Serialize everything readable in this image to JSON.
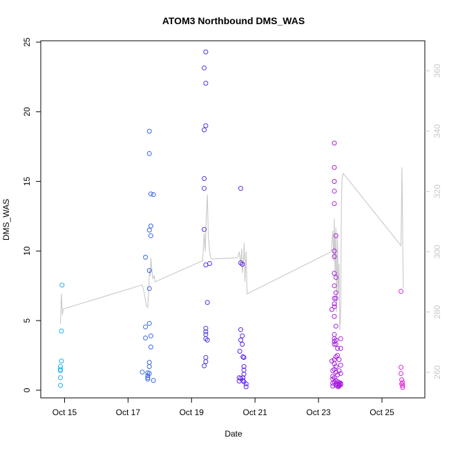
{
  "chart_data": {
    "type": "scatter",
    "title": "ATOM3 Northbound DMS_WAS",
    "xlabel": "Date",
    "ylabel": "DMS_WAS",
    "x_unit": "date (October, day of month)",
    "xlim": [
      14.25,
      26.35
    ],
    "ylim": [
      -0.55,
      25.1
    ],
    "y2lim": [
      251.5,
      370
    ],
    "x_ticks": [
      {
        "value": 15,
        "label": "Oct 15"
      },
      {
        "value": 17,
        "label": "Oct 17"
      },
      {
        "value": 19,
        "label": "Oct 19"
      },
      {
        "value": 21,
        "label": "Oct 21"
      },
      {
        "value": 23,
        "label": "Oct 23"
      },
      {
        "value": 25,
        "label": "Oct 25"
      }
    ],
    "y_ticks": [
      0,
      5,
      10,
      15,
      20,
      25
    ],
    "y2_ticks": [
      260,
      280,
      300,
      320,
      340,
      360
    ],
    "grid": false,
    "legend": "none",
    "colors": {
      "points_start": "#1ab0ea",
      "points_mid": "#5020e8",
      "points_end": "#e020d8",
      "line": "#c8c8c8",
      "right_axis": "#c8c8c8",
      "frame": "#000000"
    },
    "series": [
      {
        "type": "scatter",
        "points": [
          [
            14.87,
            1.7
          ],
          [
            14.87,
            1.5
          ],
          [
            14.87,
            1.4
          ],
          [
            14.87,
            0.9
          ],
          [
            14.87,
            0.35
          ],
          [
            14.9,
            2.1
          ],
          [
            14.9,
            4.25
          ],
          [
            14.92,
            7.55
          ],
          [
            17.45,
            1.3
          ],
          [
            17.55,
            9.55
          ],
          [
            17.55,
            4.55
          ],
          [
            17.55,
            3.75
          ],
          [
            17.62,
            1.25
          ],
          [
            17.62,
            1.05
          ],
          [
            17.62,
            0.9
          ],
          [
            17.62,
            0.8
          ],
          [
            17.67,
            18.6
          ],
          [
            17.67,
            17.0
          ],
          [
            17.67,
            11.5
          ],
          [
            17.67,
            8.6
          ],
          [
            17.67,
            7.3
          ],
          [
            17.67,
            4.8
          ],
          [
            17.67,
            2.0
          ],
          [
            17.67,
            1.7
          ],
          [
            17.67,
            1.2
          ],
          [
            17.72,
            14.1
          ],
          [
            17.72,
            11.8
          ],
          [
            17.72,
            11.1
          ],
          [
            17.72,
            3.9
          ],
          [
            17.72,
            3.1
          ],
          [
            17.8,
            14.05
          ],
          [
            17.8,
            0.7
          ],
          [
            19.4,
            23.15
          ],
          [
            19.4,
            18.7
          ],
          [
            19.4,
            15.2
          ],
          [
            19.4,
            14.5
          ],
          [
            19.4,
            11.55
          ],
          [
            19.4,
            1.75
          ],
          [
            19.45,
            24.3
          ],
          [
            19.45,
            22.05
          ],
          [
            19.45,
            19.0
          ],
          [
            19.45,
            9.0
          ],
          [
            19.45,
            4.45
          ],
          [
            19.45,
            4.2
          ],
          [
            19.45,
            4.0
          ],
          [
            19.45,
            3.7
          ],
          [
            19.45,
            2.35
          ],
          [
            19.45,
            2.05
          ],
          [
            19.5,
            6.3
          ],
          [
            19.5,
            3.6
          ],
          [
            19.57,
            9.1
          ],
          [
            20.5,
            0.9
          ],
          [
            20.5,
            0.65
          ],
          [
            20.52,
            2.8
          ],
          [
            20.55,
            14.5
          ],
          [
            20.55,
            9.15
          ],
          [
            20.55,
            4.35
          ],
          [
            20.55,
            3.6
          ],
          [
            20.55,
            0.85
          ],
          [
            20.6,
            9.05
          ],
          [
            20.6,
            3.9
          ],
          [
            20.6,
            3.3
          ],
          [
            20.62,
            2.4
          ],
          [
            20.62,
            0.9
          ],
          [
            20.62,
            0.7
          ],
          [
            20.65,
            2.35
          ],
          [
            20.65,
            1.7
          ],
          [
            20.65,
            1.45
          ],
          [
            20.65,
            1.15
          ],
          [
            20.65,
            0.6
          ],
          [
            20.72,
            0.45
          ],
          [
            20.72,
            0.25
          ],
          [
            23.42,
            5.8
          ],
          [
            23.42,
            2.1
          ],
          [
            23.45,
            1.4
          ],
          [
            23.45,
            1.0
          ],
          [
            23.45,
            0.8
          ],
          [
            23.45,
            0.5
          ],
          [
            23.45,
            0.3
          ],
          [
            23.5,
            17.75
          ],
          [
            23.5,
            16.0
          ],
          [
            23.5,
            15.0
          ],
          [
            23.5,
            14.3
          ],
          [
            23.5,
            13.4
          ],
          [
            23.5,
            10.0
          ],
          [
            23.5,
            9.6
          ],
          [
            23.5,
            8.4
          ],
          [
            23.5,
            7.5
          ],
          [
            23.5,
            6.6
          ],
          [
            23.5,
            6.2
          ],
          [
            23.5,
            6.0
          ],
          [
            23.5,
            5.3
          ],
          [
            23.5,
            4.0
          ],
          [
            23.5,
            3.7
          ],
          [
            23.5,
            3.5
          ],
          [
            23.5,
            3.3
          ],
          [
            23.5,
            2.2
          ],
          [
            23.5,
            1.9
          ],
          [
            23.5,
            1.5
          ],
          [
            23.5,
            0.9
          ],
          [
            23.5,
            0.6
          ],
          [
            23.55,
            11.1
          ],
          [
            23.55,
            8.1
          ],
          [
            23.55,
            7.0
          ],
          [
            23.55,
            6.6
          ],
          [
            23.55,
            4.6
          ],
          [
            23.55,
            3.6
          ],
          [
            23.55,
            3.3
          ],
          [
            23.55,
            2.4
          ],
          [
            23.55,
            1.7
          ],
          [
            23.55,
            1.3
          ],
          [
            23.55,
            0.7
          ],
          [
            23.55,
            0.5
          ],
          [
            23.55,
            0.35
          ],
          [
            23.6,
            3.0
          ],
          [
            23.6,
            2.5
          ],
          [
            23.6,
            1.1
          ],
          [
            23.6,
            0.6
          ],
          [
            23.6,
            0.45
          ],
          [
            23.6,
            0.35
          ],
          [
            23.62,
            0.25
          ],
          [
            23.65,
            2.2
          ],
          [
            23.65,
            1.4
          ],
          [
            23.65,
            0.55
          ],
          [
            23.65,
            0.45
          ],
          [
            23.65,
            0.4
          ],
          [
            23.65,
            0.35
          ],
          [
            23.65,
            0.3
          ],
          [
            23.7,
            3.7
          ],
          [
            23.7,
            3.0
          ],
          [
            23.7,
            1.8
          ],
          [
            23.7,
            1.2
          ],
          [
            23.7,
            0.5
          ],
          [
            23.7,
            0.45
          ],
          [
            23.7,
            0.4
          ],
          [
            25.6,
            7.1
          ],
          [
            25.6,
            1.65
          ],
          [
            25.6,
            1.2
          ],
          [
            25.62,
            0.75
          ],
          [
            25.62,
            0.45
          ],
          [
            25.65,
            0.55
          ],
          [
            25.65,
            0.35
          ],
          [
            25.65,
            0.2
          ]
        ]
      },
      {
        "type": "line",
        "axis": "right",
        "points": [
          [
            14.87,
            276
          ],
          [
            14.9,
            286
          ],
          [
            14.93,
            279
          ],
          [
            14.96,
            281
          ],
          [
            17.45,
            289
          ],
          [
            17.5,
            287
          ],
          [
            17.58,
            282
          ],
          [
            17.62,
            281.5
          ],
          [
            17.66,
            290
          ],
          [
            17.68,
            294
          ],
          [
            17.7,
            292
          ],
          [
            17.72,
            298
          ],
          [
            17.74,
            295
          ],
          [
            17.78,
            291
          ],
          [
            17.82,
            292
          ],
          [
            17.85,
            290
          ],
          [
            19.35,
            297
          ],
          [
            19.4,
            306
          ],
          [
            19.43,
            300
          ],
          [
            19.46,
            310
          ],
          [
            19.5,
            319
          ],
          [
            19.53,
            305
          ],
          [
            19.57,
            300
          ],
          [
            19.6,
            298
          ],
          [
            19.65,
            297.6
          ],
          [
            20.45,
            298
          ],
          [
            20.5,
            300
          ],
          [
            20.55,
            296
          ],
          [
            20.58,
            301
          ],
          [
            20.6,
            293
          ],
          [
            20.63,
            296
          ],
          [
            20.66,
            303
          ],
          [
            20.68,
            290
          ],
          [
            20.72,
            300
          ],
          [
            20.75,
            286
          ],
          [
            23.4,
            300
          ],
          [
            23.45,
            307
          ],
          [
            23.48,
            297
          ],
          [
            23.5,
            311
          ],
          [
            23.52,
            292
          ],
          [
            23.55,
            308
          ],
          [
            23.57,
            280
          ],
          [
            23.6,
            306
          ],
          [
            23.62,
            286
          ],
          [
            23.65,
            296
          ],
          [
            23.67,
            274
          ],
          [
            23.7,
            279
          ],
          [
            23.72,
            315
          ],
          [
            23.74,
            324
          ],
          [
            23.78,
            326
          ],
          [
            25.6,
            302
          ],
          [
            25.63,
            328
          ],
          [
            25.67,
            288
          ]
        ]
      }
    ]
  }
}
